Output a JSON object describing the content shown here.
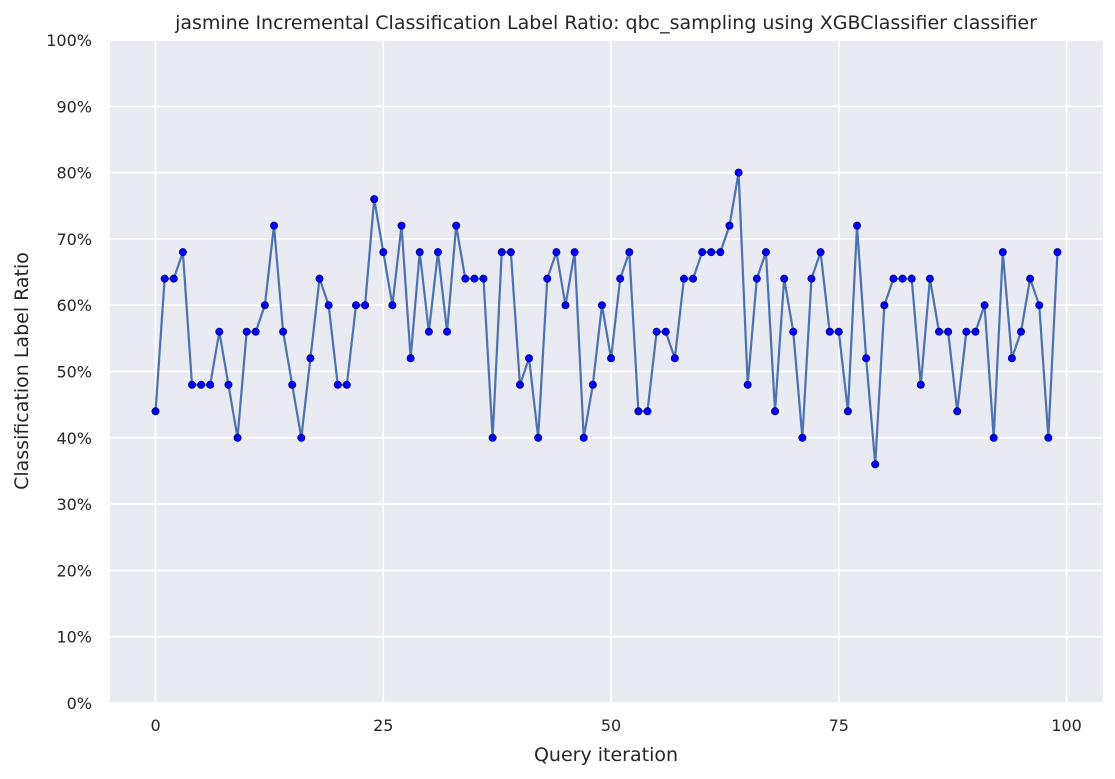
{
  "chart_data": {
    "type": "line",
    "title": "jasmine Incremental Classification Label Ratio: qbc_sampling using XGBClassifier classifier",
    "xlabel": "Query iteration",
    "ylabel": "Classification Label Ratio",
    "xlim": [
      -5,
      104
    ],
    "ylim": [
      0,
      1
    ],
    "x_ticks": [
      0,
      25,
      50,
      75,
      100
    ],
    "x_tick_labels": [
      "0",
      "25",
      "50",
      "75",
      "100"
    ],
    "y_ticks": [
      0,
      0.1,
      0.2,
      0.3,
      0.4,
      0.5,
      0.6,
      0.7,
      0.8,
      0.9,
      1.0
    ],
    "y_tick_labels": [
      "0%",
      "10%",
      "20%",
      "30%",
      "40%",
      "50%",
      "60%",
      "70%",
      "80%",
      "90%",
      "100%"
    ],
    "grid": true,
    "colors": {
      "background": "#eaeaf2",
      "grid": "#ffffff",
      "line": "#4c72b0",
      "marker_fill": "#0000ff",
      "marker_edge": "#000080",
      "text": "#262626"
    },
    "series": [
      {
        "x": [
          0,
          1,
          2,
          3,
          4,
          5,
          6,
          7,
          8,
          9,
          10,
          11,
          12,
          13,
          14,
          15,
          16,
          17,
          18,
          19,
          20,
          21,
          22,
          23,
          24,
          25,
          26,
          27,
          28,
          29,
          30,
          31,
          32,
          33,
          34,
          35,
          36,
          37,
          38,
          39,
          40,
          41,
          42,
          43,
          44,
          45,
          46,
          47,
          48,
          49,
          50,
          51,
          52,
          53,
          54,
          55,
          56,
          57,
          58,
          59,
          60,
          61,
          62,
          63,
          64,
          65,
          66,
          67,
          68,
          69,
          70,
          71,
          72,
          73,
          74,
          75,
          76,
          77,
          78,
          79,
          80,
          81,
          82,
          83,
          84,
          85,
          86,
          87,
          88,
          89,
          90,
          91,
          92,
          93,
          94,
          95,
          96,
          97,
          98,
          99
        ],
        "values": [
          0.44,
          0.64,
          0.64,
          0.68,
          0.48,
          0.48,
          0.48,
          0.56,
          0.48,
          0.4,
          0.56,
          0.56,
          0.6,
          0.72,
          0.56,
          0.48,
          0.4,
          0.52,
          0.64,
          0.6,
          0.48,
          0.48,
          0.6,
          0.6,
          0.76,
          0.68,
          0.6,
          0.72,
          0.52,
          0.68,
          0.56,
          0.68,
          0.56,
          0.72,
          0.64,
          0.64,
          0.64,
          0.4,
          0.68,
          0.68,
          0.48,
          0.52,
          0.4,
          0.64,
          0.68,
          0.6,
          0.68,
          0.4,
          0.48,
          0.6,
          0.52,
          0.64,
          0.68,
          0.44,
          0.44,
          0.56,
          0.56,
          0.52,
          0.64,
          0.64,
          0.68,
          0.68,
          0.68,
          0.72,
          0.8,
          0.48,
          0.64,
          0.68,
          0.44,
          0.64,
          0.56,
          0.4,
          0.64,
          0.68,
          0.56,
          0.56,
          0.44,
          0.72,
          0.52,
          0.36,
          0.6,
          0.64,
          0.64,
          0.64,
          0.48,
          0.64,
          0.56,
          0.56,
          0.44,
          0.56,
          0.56,
          0.6,
          0.4,
          0.68,
          0.52,
          0.56,
          0.64,
          0.6,
          0.4,
          0.68
        ]
      }
    ]
  }
}
